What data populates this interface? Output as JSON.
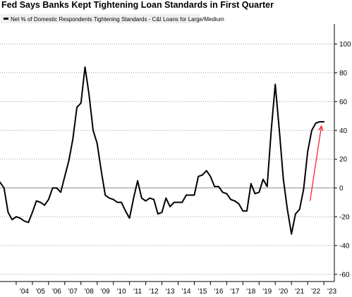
{
  "chart_data": {
    "type": "line",
    "title": "Fed Says Banks Kept Tightening Loan Standards in First Quarter",
    "legend": "Net % of Domestic Respondents Tightening Standards - C&I Loans for Large/Medium",
    "legend_position": "top-left",
    "ylim": [
      -65,
      112
    ],
    "yticks": [
      100,
      80,
      60,
      40,
      20,
      0,
      -20,
      -40,
      -60
    ],
    "xlim": [
      2003.0,
      2023.65
    ],
    "xtick_labels": [
      "'04",
      "'05",
      "'06",
      "'07",
      "'08",
      "'09",
      "'10",
      "'11",
      "'12",
      "'13",
      "'14",
      "'15",
      "'16",
      "'17",
      "'18",
      "'19",
      "'20",
      "'21",
      "'22",
      "'23"
    ],
    "grid": "horizontal dotted",
    "zero_line": true,
    "series": [
      {
        "color": "#000000",
        "x": [
          2003.0,
          2003.25,
          2003.5,
          2003.75,
          2004.0,
          2004.25,
          2004.5,
          2004.75,
          2005.0,
          2005.25,
          2005.5,
          2005.75,
          2006.0,
          2006.25,
          2006.5,
          2006.75,
          2007.0,
          2007.25,
          2007.5,
          2007.75,
          2008.0,
          2008.25,
          2008.5,
          2008.75,
          2009.0,
          2009.25,
          2009.5,
          2009.75,
          2010.0,
          2010.25,
          2010.5,
          2010.75,
          2011.0,
          2011.25,
          2011.5,
          2011.75,
          2012.0,
          2012.25,
          2012.5,
          2012.75,
          2013.0,
          2013.25,
          2013.5,
          2013.75,
          2014.0,
          2014.25,
          2014.5,
          2014.75,
          2015.0,
          2015.25,
          2015.5,
          2015.75,
          2016.0,
          2016.25,
          2016.5,
          2016.75,
          2017.0,
          2017.25,
          2017.5,
          2017.75,
          2018.0,
          2018.25,
          2018.5,
          2018.75,
          2019.0,
          2019.25,
          2019.5,
          2019.75,
          2020.0,
          2020.25,
          2020.5,
          2020.75,
          2021.0,
          2021.25,
          2021.5,
          2021.75,
          2022.0,
          2022.25,
          2022.5,
          2022.75,
          2023.0
        ],
        "y": [
          4,
          0,
          -17,
          -22,
          -20,
          -21,
          -23,
          -24,
          -17,
          -9,
          -10,
          -12,
          -8,
          0,
          0,
          -3,
          8,
          19,
          34,
          56,
          59,
          84,
          65,
          40,
          31,
          12,
          -5,
          -7,
          -8,
          -10,
          -10,
          -16,
          -21,
          -7,
          5,
          -7,
          -9,
          -7,
          -8,
          -18,
          -17,
          -7,
          -13,
          -10,
          -10,
          -10,
          -5,
          -5,
          -5,
          8,
          9,
          12,
          8,
          1,
          1,
          -3,
          -4,
          -8,
          -9,
          -11,
          -16,
          -16,
          3,
          -4,
          -3,
          6,
          1,
          40,
          72,
          40,
          6,
          -15,
          -32,
          -18,
          -15,
          -1,
          25,
          40,
          45,
          46,
          46
        ]
      }
    ],
    "arrow": {
      "from_x": 2022.15,
      "from_y": -9,
      "to_x": 2022.85,
      "to_y": 43,
      "color": "#ff2233"
    }
  }
}
